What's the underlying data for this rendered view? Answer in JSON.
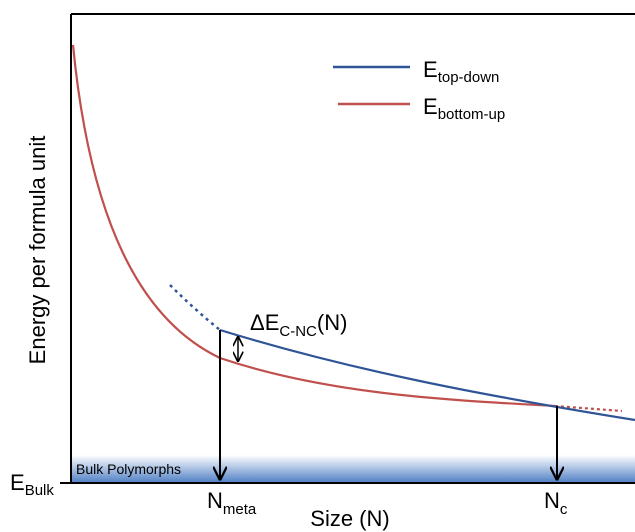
{
  "legend": [
    {
      "symbol": "E",
      "subscript": "top-down"
    },
    {
      "symbol": "E",
      "subscript": "bottom-up"
    }
  ],
  "band_label": "Bulk Polymorphs",
  "annotation": {
    "symbol": "ΔE",
    "subscript": "C-NC",
    "suffix": "(N)"
  },
  "y_axis": {
    "title": "Energy per formula unit",
    "bulk_label": {
      "symbol": "E",
      "subscript": "Bulk"
    }
  },
  "x_axis": {
    "title": "Size (N)",
    "labels": [
      {
        "symbol": "N",
        "subscript": "meta"
      },
      {
        "symbol": "N",
        "subscript": "c"
      }
    ]
  }
}
